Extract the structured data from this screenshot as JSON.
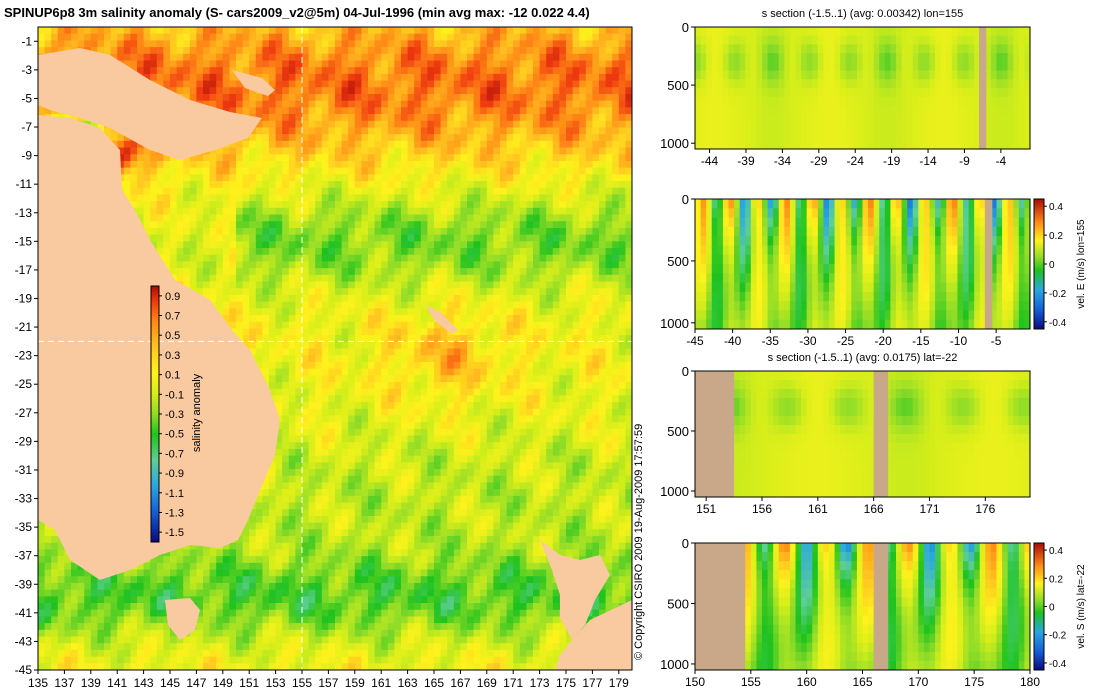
{
  "title": "SPINUP6p8 3m salinity anomaly (S- cars2009_v2@5m) 04-Jul-1996 (min avg max: -12 0.022 4.4)",
  "copyright": "© Copyright CSIRO 2009   19-Aug-2009 17:57:59",
  "colors": {
    "land": "#f9c9a0",
    "section_land": "#c8a888",
    "ramp": [
      "#0a0a80",
      "#1560d8",
      "#2aa6e0",
      "#5ecf95",
      "#1ec21e",
      "#8fdc28",
      "#d6ee1a",
      "#fff21c",
      "#ffc520",
      "#ff8a16",
      "#ef3a10",
      "#a80c08"
    ]
  },
  "chart_data": [
    {
      "type": "heatmap",
      "panel": "map",
      "xlim": [
        135,
        180
      ],
      "ylim": [
        -45,
        0
      ],
      "xticks": [
        135,
        137,
        139,
        141,
        143,
        145,
        147,
        149,
        151,
        153,
        155,
        157,
        159,
        161,
        163,
        165,
        167,
        169,
        171,
        173,
        175,
        177,
        179
      ],
      "yticks": [
        -1,
        -3,
        -5,
        -7,
        -9,
        -11,
        -13,
        -15,
        -17,
        -19,
        -21,
        -23,
        -25,
        -27,
        -29,
        -31,
        -33,
        -35,
        -37,
        -39,
        -41,
        -43,
        -45
      ],
      "colorbar_label": "salinity anomaly",
      "colorbar_ticks": [
        "0.9",
        "0.7",
        "0.5",
        "0.3",
        "0.1",
        "-0.1",
        "-0.3",
        "-0.5",
        "-0.7",
        "-0.9",
        "-1.1",
        "-1.3",
        "-1.5"
      ],
      "clim": [
        -1.6,
        1.0
      ],
      "crosshair_lon": 155,
      "crosshair_lat": -22
    },
    {
      "type": "heatmap",
      "panel": "section",
      "title": "s section (-1.5..1) (avg: 0.00342) lon=155",
      "xlim": [
        -46,
        0
      ],
      "ylim": [
        0,
        1050
      ],
      "xticks": [
        "-44",
        "-39",
        "-34",
        "-29",
        "-24",
        "-19",
        "-14",
        "-9",
        "-4"
      ],
      "xtick_values": [
        -44,
        -39,
        -34,
        -29,
        -24,
        -19,
        -14,
        -9,
        -4
      ],
      "yticks": [
        "0",
        "500",
        "1000"
      ],
      "ytick_values": [
        0,
        500,
        1000
      ],
      "land_x": [
        [
          -7,
          -6
        ]
      ]
    },
    {
      "type": "heatmap",
      "panel": "section",
      "title": "",
      "xlim": [
        -45,
        -0.5
      ],
      "ylim": [
        0,
        1050
      ],
      "xticks": [
        "-45",
        "-40",
        "-35",
        "-30",
        "-25",
        "-20",
        "-15",
        "-10",
        "-5"
      ],
      "xtick_values": [
        -45,
        -40,
        -35,
        -30,
        -25,
        -20,
        -15,
        -10,
        -5
      ],
      "yticks": [
        "0",
        "500",
        "1000"
      ],
      "ytick_values": [
        0,
        500,
        1000
      ],
      "colorbar_label": "vel. E (m/s) lon=155",
      "colorbar_ticks": [
        "0.4",
        "0.2",
        "0",
        "-0.2",
        "-0.4"
      ],
      "colorbar_values": [
        0.4,
        0.2,
        0,
        -0.2,
        -0.4
      ],
      "clim": [
        -0.45,
        0.45
      ],
      "land_x": [
        [
          -6.5,
          -5.5
        ]
      ]
    },
    {
      "type": "heatmap",
      "panel": "section",
      "title": "s section (-1.5..1) (avg: 0.0175) lat=-22",
      "xlim": [
        150,
        180
      ],
      "ylim": [
        0,
        1050
      ],
      "xticks": [
        "151",
        "156",
        "161",
        "166",
        "171",
        "176"
      ],
      "xtick_values": [
        151,
        156,
        161,
        166,
        171,
        176
      ],
      "yticks": [
        "0",
        "500",
        "1000"
      ],
      "ytick_values": [
        0,
        500,
        1000
      ],
      "land_x": [
        [
          150,
          153.5
        ],
        [
          166,
          167.3
        ]
      ]
    },
    {
      "type": "heatmap",
      "panel": "section",
      "title": "",
      "xlim": [
        150,
        180
      ],
      "ylim": [
        0,
        1050
      ],
      "xticks": [
        "150",
        "155",
        "160",
        "165",
        "170",
        "175",
        "180"
      ],
      "xtick_values": [
        150,
        155,
        160,
        165,
        170,
        175,
        180
      ],
      "yticks": [
        "0",
        "500",
        "1000"
      ],
      "ytick_values": [
        0,
        500,
        1000
      ],
      "colorbar_label": "vel. S (m/s) lat=-22",
      "colorbar_ticks": [
        "0.4",
        "0.2",
        "0",
        "-0.2",
        "-0.4"
      ],
      "colorbar_values": [
        0.4,
        0.2,
        0,
        -0.2,
        -0.4
      ],
      "clim": [
        -0.45,
        0.45
      ],
      "land_x": [
        [
          150,
          154.5
        ],
        [
          166,
          167.3
        ]
      ]
    }
  ]
}
